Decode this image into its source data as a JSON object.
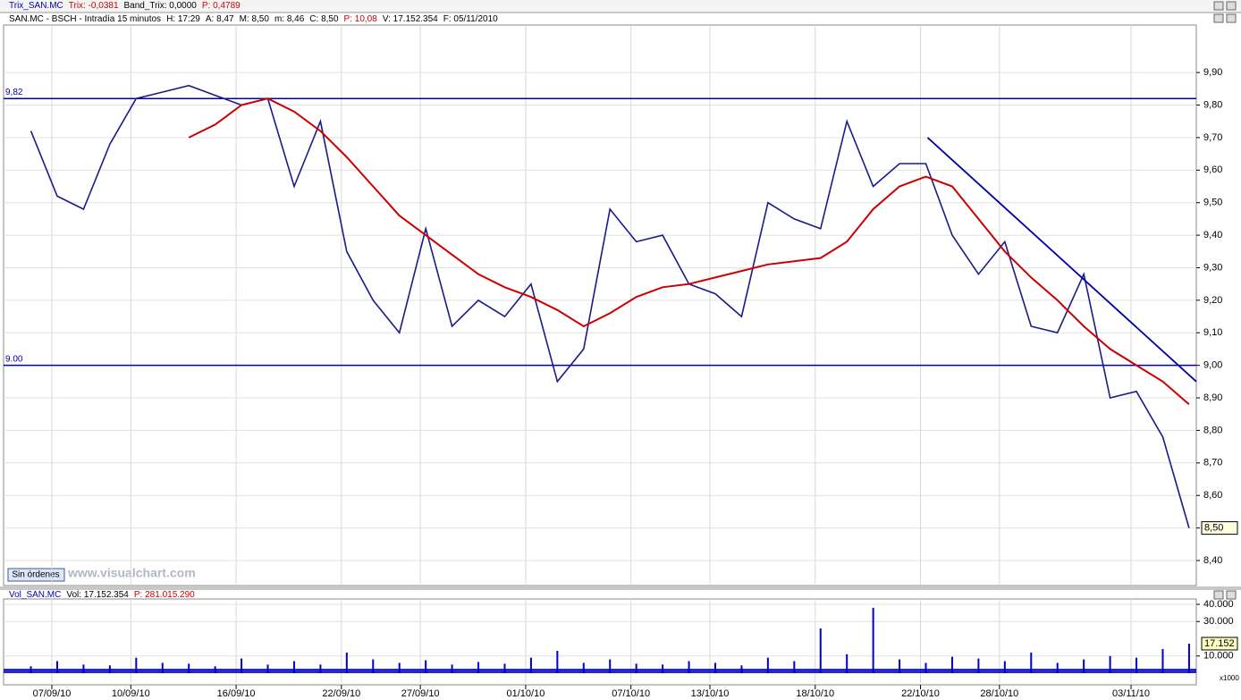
{
  "trix_header": [
    "Trix_SAN.MC",
    "Trix: -0,0381",
    "Band_Trix: 0,0000",
    "P: 0,4789"
  ],
  "badge": "Sin órdenes",
  "watermark": "www.visualchart.com",
  "chart_data": [
    {
      "type": "line",
      "title": "SAN.MC - BSCH - Intradía 15 minutos",
      "info": [
        "H: 17:29",
        "A: 8,47",
        "M: 8,50",
        "m: 8,46",
        "C: 8,50",
        "P: 10,08",
        "V: 17.152.354",
        "F: 05/11/2010"
      ],
      "categories": [
        null,
        "07/09/10",
        null,
        null,
        "10/09/10",
        null,
        null,
        null,
        "16/09/10",
        null,
        null,
        null,
        "22/09/10",
        null,
        null,
        "27/09/10",
        null,
        null,
        null,
        "01/10/10",
        null,
        null,
        null,
        "07/10/10",
        null,
        null,
        "13/10/10",
        null,
        null,
        null,
        "18/10/10",
        null,
        null,
        null,
        "22/10/10",
        null,
        null,
        "28/10/10",
        null,
        null,
        null,
        null,
        "03/11/10",
        null,
        null
      ],
      "series": [
        {
          "color": "#1a1a8c",
          "values": [
            9.72,
            9.52,
            9.48,
            9.68,
            9.82,
            9.84,
            9.86,
            9.83,
            9.8,
            9.82,
            9.55,
            9.75,
            9.35,
            9.2,
            9.1,
            9.42,
            9.12,
            9.2,
            9.15,
            9.25,
            8.95,
            9.05,
            9.48,
            9.38,
            9.4,
            9.25,
            9.22,
            9.15,
            9.5,
            9.45,
            9.42,
            9.75,
            9.55,
            9.62,
            9.62,
            9.4,
            9.28,
            9.38,
            9.12,
            9.1,
            9.28,
            8.9,
            8.92,
            8.78,
            8.5
          ]
        },
        {
          "color": "#cc0000",
          "values": [
            null,
            null,
            null,
            null,
            null,
            null,
            9.7,
            9.74,
            9.8,
            9.82,
            9.78,
            9.72,
            9.64,
            9.55,
            9.46,
            9.4,
            9.34,
            9.28,
            9.24,
            9.21,
            9.17,
            9.12,
            9.16,
            9.21,
            9.24,
            9.25,
            9.27,
            9.29,
            9.31,
            9.32,
            9.33,
            9.38,
            9.48,
            9.55,
            9.58,
            9.55,
            9.45,
            9.35,
            9.27,
            9.2,
            9.12,
            9.05,
            9.0,
            8.95,
            8.88
          ]
        }
      ],
      "ylim": [
        8.323,
        10.046
      ],
      "yticks": [
        {
          "value": 8.4,
          "label": "8,40"
        },
        {
          "value": 8.5,
          "label": "8,50"
        },
        {
          "value": 8.6,
          "label": "8,60"
        },
        {
          "value": 8.7,
          "label": "8,70"
        },
        {
          "value": 8.8,
          "label": "8,80"
        },
        {
          "value": 8.9,
          "label": "8,90"
        },
        {
          "value": 9.0,
          "label": "9,00"
        },
        {
          "value": 9.1,
          "label": "9,10"
        },
        {
          "value": 9.2,
          "label": "9,20"
        },
        {
          "value": 9.3,
          "label": "9,30"
        },
        {
          "value": 9.4,
          "label": "9,40"
        },
        {
          "value": 9.5,
          "label": "9,50"
        },
        {
          "value": 9.6,
          "label": "9,60"
        },
        {
          "value": 9.7,
          "label": "9,70"
        },
        {
          "value": 9.8,
          "label": "9,80"
        },
        {
          "value": 9.9,
          "label": "9,90"
        }
      ],
      "levels": [
        {
          "value": 9.82,
          "label": "9,82"
        },
        {
          "value": 9.0,
          "label": "9.00"
        }
      ],
      "level_color": "#0000aa",
      "trendline": [
        9.7,
        8.95
      ],
      "current": {
        "value": 8.5,
        "label": "8,50"
      },
      "grid": true
    },
    {
      "type": "bar",
      "title": "Vol_SAN.MC",
      "info": [
        "Vol: 17.152.354",
        "P: 281.015.290"
      ],
      "color": "#0000cc",
      "values": [
        4000,
        7000,
        5000,
        4500,
        9000,
        6000,
        5500,
        4000,
        8500,
        5000,
        7000,
        5000,
        12000,
        8000,
        6000,
        7500,
        5000,
        6500,
        5500,
        9000,
        13000,
        6000,
        8000,
        5500,
        5000,
        7000,
        6000,
        4500,
        9000,
        7000,
        26000,
        11000,
        38000,
        8000,
        6000,
        9500,
        8500,
        7000,
        12000,
        6000,
        8000,
        10000,
        9000,
        14000,
        17152
      ],
      "ylim": [
        0,
        43100
      ],
      "yticks": [
        {
          "value": 10000,
          "label": "10.000"
        },
        {
          "value": 30000,
          "label": "30.000"
        },
        {
          "value": 40000,
          "label": "40.000"
        }
      ],
      "multiplier": "x1000",
      "current": {
        "value": 17152,
        "label": "17.152"
      },
      "grid": true
    }
  ]
}
